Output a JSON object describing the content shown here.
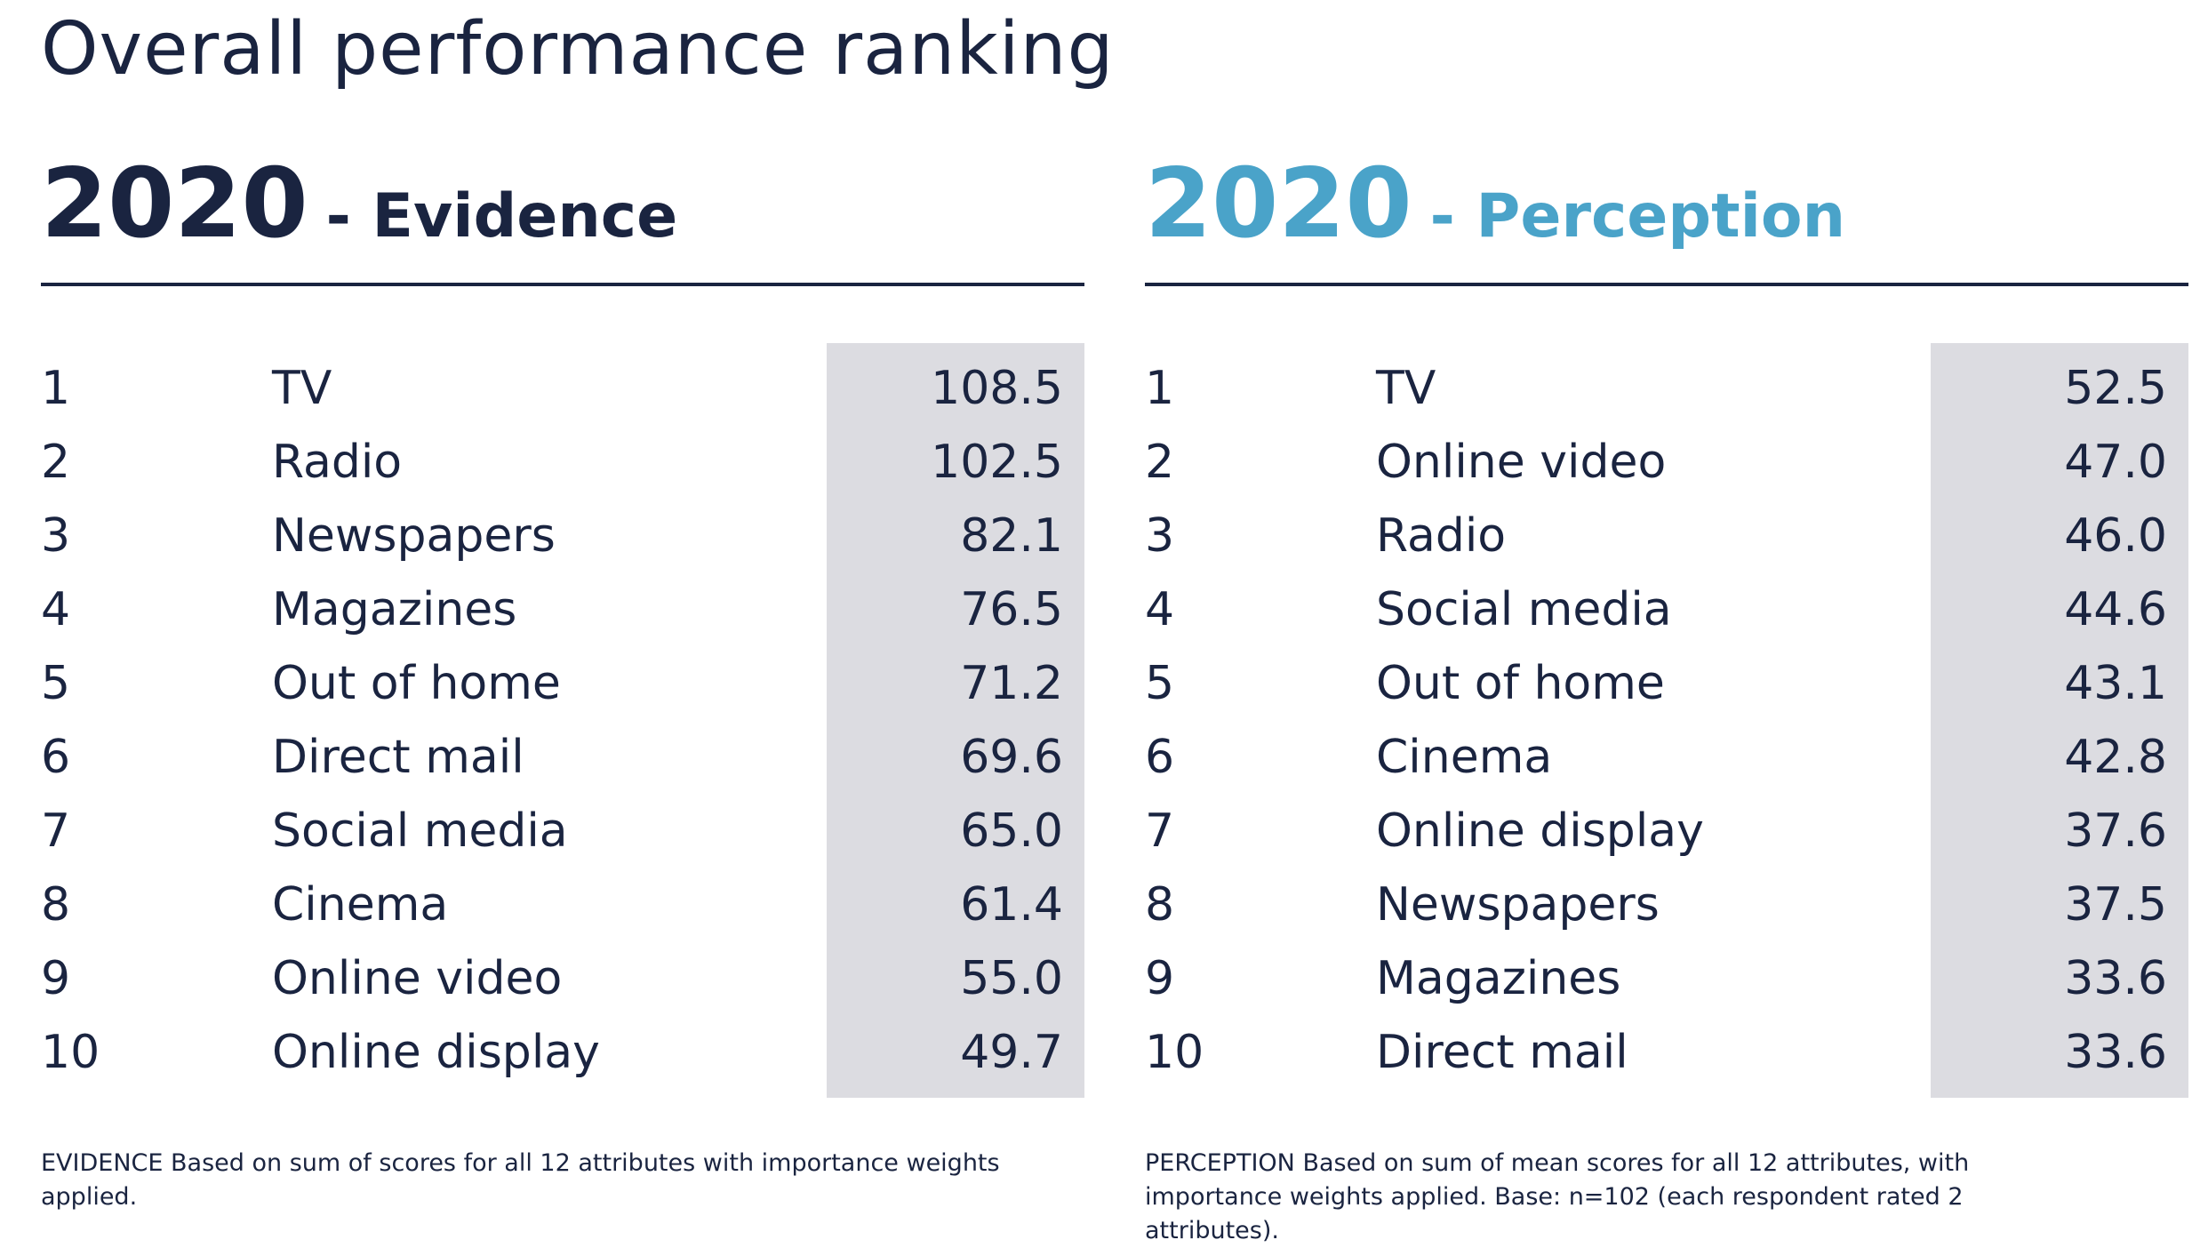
{
  "title": "Overall performance ranking",
  "colors": {
    "navy": "#1a2440",
    "accent_blue": "#4aa3c9",
    "value_band": "#dcdce1"
  },
  "panels": [
    {
      "year": "2020",
      "subtitle": "- Evidence",
      "rows": [
        {
          "rank": "1",
          "media": "TV",
          "value": "108.5"
        },
        {
          "rank": "2",
          "media": "Radio",
          "value": "102.5"
        },
        {
          "rank": "3",
          "media": "Newspapers",
          "value": "82.1"
        },
        {
          "rank": "4",
          "media": "Magazines",
          "value": "76.5"
        },
        {
          "rank": "5",
          "media": "Out of home",
          "value": "71.2"
        },
        {
          "rank": "6",
          "media": "Direct mail",
          "value": "69.6"
        },
        {
          "rank": "7",
          "media": "Social media",
          "value": "65.0"
        },
        {
          "rank": "8",
          "media": "Cinema",
          "value": "61.4"
        },
        {
          "rank": "9",
          "media": "Online video",
          "value": "55.0"
        },
        {
          "rank": "10",
          "media": "Online display",
          "value": "49.7"
        }
      ],
      "footnote": "EVIDENCE Based on sum of scores for all 12 attributes with importance weights applied."
    },
    {
      "year": "2020",
      "subtitle": "- Perception",
      "rows": [
        {
          "rank": "1",
          "media": "TV",
          "value": "52.5"
        },
        {
          "rank": "2",
          "media": "Online video",
          "value": "47.0"
        },
        {
          "rank": "3",
          "media": "Radio",
          "value": "46.0"
        },
        {
          "rank": "4",
          "media": "Social media",
          "value": "44.6"
        },
        {
          "rank": "5",
          "media": "Out of home",
          "value": "43.1"
        },
        {
          "rank": "6",
          "media": "Cinema",
          "value": "42.8"
        },
        {
          "rank": "7",
          "media": "Online display",
          "value": "37.6"
        },
        {
          "rank": "8",
          "media": "Newspapers",
          "value": "37.5"
        },
        {
          "rank": "9",
          "media": "Magazines",
          "value": "33.6"
        },
        {
          "rank": "10",
          "media": "Direct mail",
          "value": "33.6"
        }
      ],
      "footnote": "PERCEPTION Based on sum of mean scores for all 12 attributes, with importance weights applied. Base: n=102 (each respondent rated 2 attributes)."
    }
  ],
  "chart_data": [
    {
      "type": "table",
      "title": "2020 - Evidence",
      "columns": [
        "rank",
        "media",
        "value"
      ],
      "categories": [
        "TV",
        "Radio",
        "Newspapers",
        "Magazines",
        "Out of home",
        "Direct mail",
        "Social media",
        "Cinema",
        "Online video",
        "Online display"
      ],
      "values": [
        108.5,
        102.5,
        82.1,
        76.5,
        71.2,
        69.6,
        65.0,
        61.4,
        55.0,
        49.7
      ]
    },
    {
      "type": "table",
      "title": "2020 - Perception",
      "columns": [
        "rank",
        "media",
        "value"
      ],
      "categories": [
        "TV",
        "Online video",
        "Radio",
        "Social media",
        "Out of home",
        "Cinema",
        "Online display",
        "Newspapers",
        "Magazines",
        "Direct mail"
      ],
      "values": [
        52.5,
        47.0,
        46.0,
        44.6,
        43.1,
        42.8,
        37.6,
        37.5,
        33.6,
        33.6
      ]
    }
  ]
}
